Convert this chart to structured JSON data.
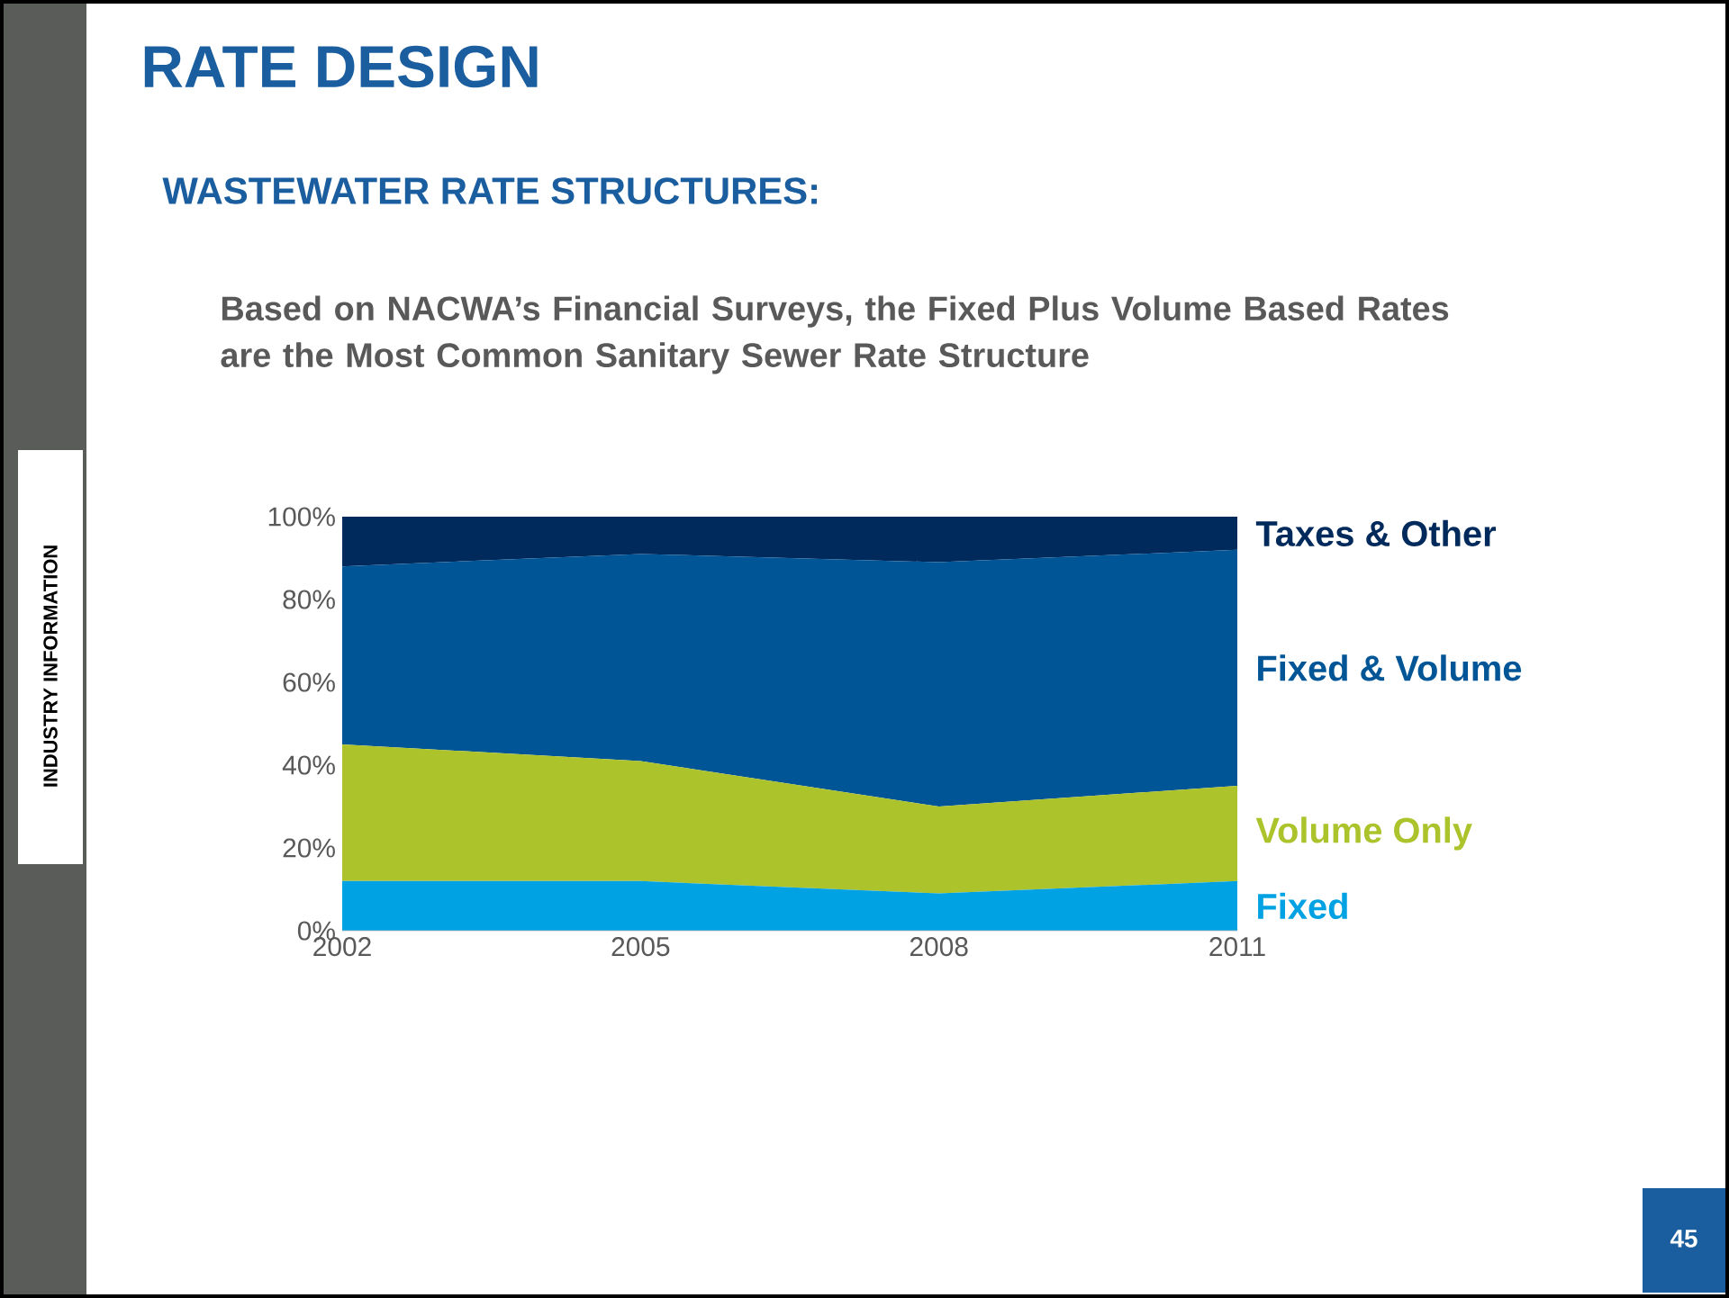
{
  "chart_data": {
    "type": "area",
    "stacked": true,
    "title": "RATE DESIGN",
    "subtitle": "WASTEWATER RATE STRUCTURES:",
    "annotations": [
      "Based on NACWA’s Financial Surveys, the Fixed Plus Volume Based Rates are the Most Common Sanitary Sewer Rate Structure",
      "INDUSTRY INFORMATION",
      "45"
    ],
    "x": [
      2002,
      2005,
      2008,
      2011
    ],
    "xlim": [
      2002,
      2011
    ],
    "xticks": [
      2002,
      2005,
      2008,
      2011
    ],
    "ylim": [
      0,
      100
    ],
    "yticks": [
      {
        "value": 0,
        "label": "0%"
      },
      {
        "value": 20,
        "label": "20%"
      },
      {
        "value": 40,
        "label": "40%"
      },
      {
        "value": 60,
        "label": "60%"
      },
      {
        "value": 80,
        "label": "80%"
      },
      {
        "value": 100,
        "label": "100%"
      }
    ],
    "series": [
      {
        "name": "Fixed",
        "color": "#00a2e3",
        "values": [
          12,
          12,
          9,
          12
        ]
      },
      {
        "name": "Volume Only",
        "color": "#acc32b",
        "values": [
          33,
          29,
          21,
          23
        ]
      },
      {
        "name": "Fixed & Volume",
        "color": "#005596",
        "values": [
          43,
          50,
          59,
          57
        ]
      },
      {
        "name": "Taxes & Other",
        "color": "#002a5c",
        "values": [
          12,
          9,
          11,
          8
        ]
      }
    ]
  }
}
